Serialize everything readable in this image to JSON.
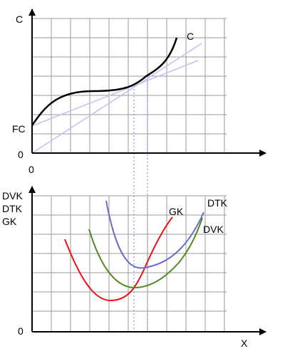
{
  "top": {
    "y_axis_label": "C",
    "fc_label": "FC",
    "origin_y_label": "0",
    "origin_x_label": "0",
    "curve_label": "C"
  },
  "bottom": {
    "y_axis_label_lines": [
      "DVK",
      "DTK",
      "GK"
    ],
    "origin_y_label": "0",
    "x_axis_label": "X",
    "gk_label": "GK",
    "dtk_label": "DTK",
    "dvk_label": "DVK"
  },
  "colors": {
    "axis": "#000000",
    "grid": "#9a9a9a",
    "cost_curve": "#000000",
    "ray": "#c0c0ee",
    "guide": "#8f8fe8",
    "gk": "#ee1111",
    "dtk": "#6a6acc",
    "dvk": "#4f8a22"
  }
}
